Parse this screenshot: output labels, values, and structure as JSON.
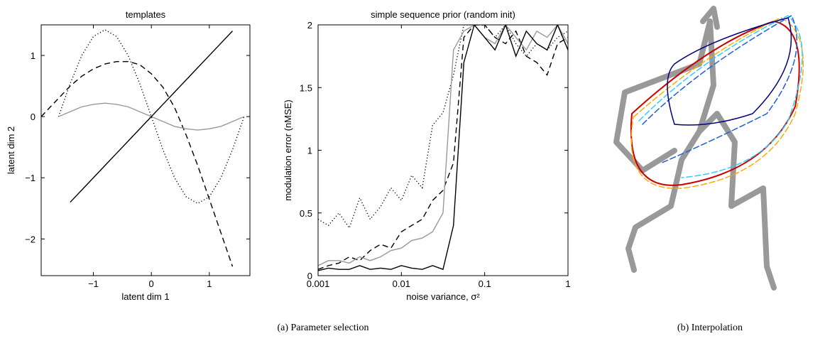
{
  "chart_data": [
    {
      "type": "line",
      "title": "templates",
      "xlabel": "latent dim 1",
      "ylabel": "latent dim 2",
      "xlim": [
        -1.9,
        1.7
      ],
      "ylim": [
        -2.6,
        1.5
      ],
      "xticks": [
        {
          "value": -1,
          "label": "−1"
        },
        0,
        1
      ],
      "yticks": [
        {
          "value": -2,
          "label": "−2"
        },
        {
          "value": -1,
          "label": "−1"
        },
        0,
        1
      ],
      "x": [
        -1.9,
        -1.6,
        -1.4,
        -1.2,
        -1.0,
        -0.8,
        -0.6,
        -0.4,
        -0.2,
        0,
        0.2,
        0.4,
        0.6,
        0.8,
        1.0,
        1.2,
        1.4,
        1.6
      ],
      "series": [
        {
          "color": "#000000",
          "style": "dotted",
          "values": [
            null,
            0,
            0.54,
            1.0,
            1.31,
            1.42,
            1.31,
            1.0,
            0.54,
            0,
            -0.54,
            -1.0,
            -1.31,
            -1.42,
            -1.31,
            -1.0,
            -0.54,
            0
          ]
        },
        {
          "color": "#000000",
          "style": "dashed",
          "values": [
            0,
            0.3,
            0.5,
            0.66,
            0.78,
            0.86,
            0.9,
            0.9,
            0.85,
            0.7,
            0.48,
            0.15,
            -0.3,
            -0.8,
            -1.35,
            -1.9,
            -2.45,
            null
          ]
        },
        {
          "color": "#999999",
          "style": "solid",
          "values": [
            null,
            0,
            0.08,
            0.16,
            0.2,
            0.22,
            0.2,
            0.16,
            0.08,
            0,
            -0.08,
            -0.16,
            -0.2,
            -0.22,
            -0.2,
            -0.16,
            -0.08,
            0
          ]
        },
        {
          "color": "#000000",
          "style": "solid",
          "values": [
            null,
            null,
            -1.4,
            -1.2,
            -1.0,
            -0.8,
            -0.6,
            -0.4,
            -0.2,
            0,
            0.2,
            0.4,
            0.6,
            0.8,
            1.0,
            1.2,
            1.4,
            null
          ]
        }
      ]
    },
    {
      "type": "line",
      "title": "simple sequence prior (random init)",
      "xlabel": "noise variance, σ²",
      "ylabel": "modulation error (nMSE)",
      "xscale": "log",
      "xlim": [
        0.001,
        1
      ],
      "ylim": [
        0,
        2
      ],
      "xticks": [
        0.001,
        0.01,
        0.1,
        1
      ],
      "yticks": [
        0,
        0.5,
        1,
        1.5,
        2
      ],
      "x": [
        0.001,
        0.00133,
        0.00178,
        0.00237,
        0.00316,
        0.00422,
        0.00562,
        0.0075,
        0.01,
        0.0133,
        0.0178,
        0.0237,
        0.0316,
        0.0422,
        0.0562,
        0.075,
        0.1,
        0.133,
        0.178,
        0.237,
        0.316,
        0.422,
        0.562,
        0.75,
        1
      ],
      "series": [
        {
          "color": "#000000",
          "style": "dotted",
          "values": [
            0.45,
            0.4,
            0.5,
            0.38,
            0.62,
            0.45,
            0.55,
            0.7,
            0.6,
            0.8,
            0.7,
            1.2,
            1.3,
            1.6,
            2,
            2,
            2,
            1.9,
            2,
            1.85,
            1.75,
            1.85,
            1.8,
            1.9,
            1.95
          ]
        },
        {
          "color": "#000000",
          "style": "dashed",
          "values": [
            0.05,
            0.08,
            0.1,
            0.15,
            0.12,
            0.2,
            0.25,
            0.22,
            0.35,
            0.4,
            0.45,
            0.6,
            0.68,
            0.9,
            1.9,
            2,
            2,
            1.9,
            1.85,
            1.95,
            1.75,
            1.7,
            1.6,
            1.85,
            1.9
          ]
        },
        {
          "color": "#999999",
          "style": "solid",
          "values": [
            0.08,
            0.12,
            0.12,
            0.1,
            0.15,
            0.12,
            0.15,
            0.2,
            0.22,
            0.28,
            0.3,
            0.35,
            0.5,
            1.8,
            1.95,
            2,
            1.9,
            1.85,
            2,
            1.9,
            1.8,
            1.95,
            1.9,
            2,
            1.85
          ]
        },
        {
          "color": "#000000",
          "style": "solid",
          "values": [
            0.04,
            0.06,
            0.05,
            0.05,
            0.08,
            0.05,
            0.06,
            0.05,
            0.08,
            0.06,
            0.05,
            0.08,
            0.05,
            0.4,
            1.7,
            2,
            1.9,
            1.8,
            2,
            1.75,
            1.95,
            1.85,
            1.8,
            2,
            1.8
          ]
        }
      ]
    }
  ],
  "captions": [
    "(a) Parameter selection",
    "(b) Interpolation"
  ]
}
